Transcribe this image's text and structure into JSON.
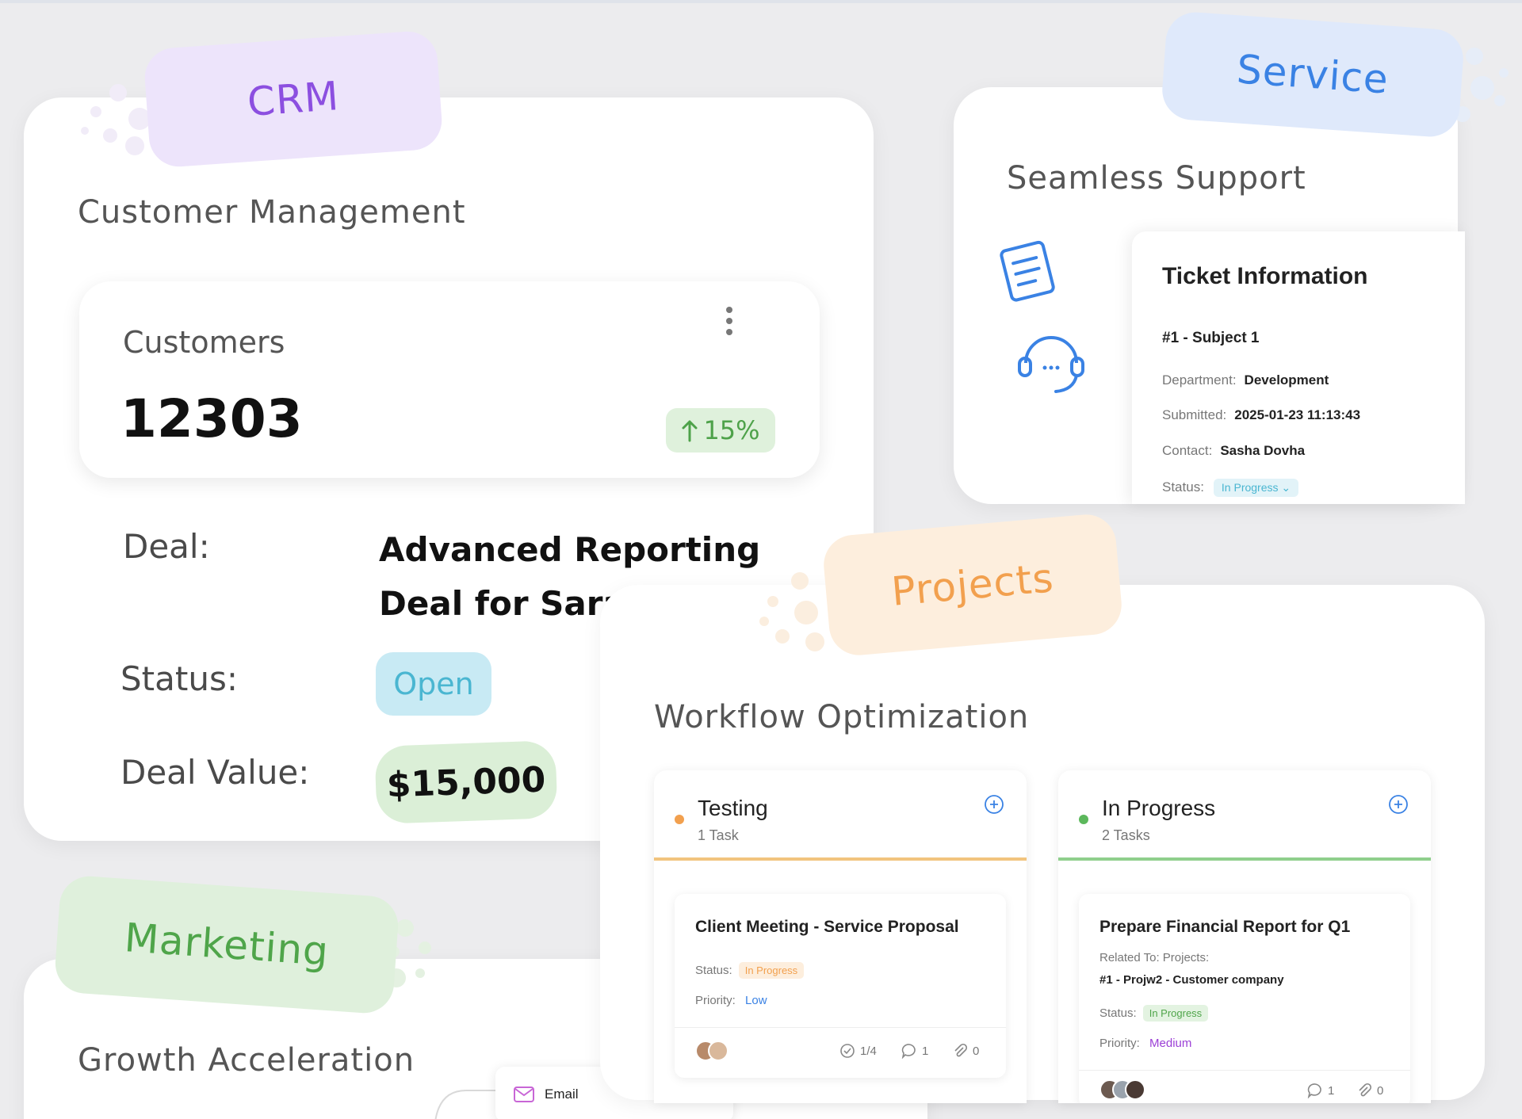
{
  "crm": {
    "tag": "CRM",
    "section_title": "Customer Management",
    "customers_label": "Customers",
    "customers_count": "12303",
    "growth": "15%",
    "deal_label": "Deal:",
    "deal_name": "Advanced Reporting Deal for Sarah",
    "status_label": "Status:",
    "status_value": "Open",
    "deal_value_label": "Deal Value:",
    "deal_value": "$15,000"
  },
  "service": {
    "tag": "Service",
    "section_title": "Seamless Support",
    "ticket_title": "Ticket Information",
    "ticket_subject": "#1 - Subject 1",
    "department_label": "Department:",
    "department_value": "Development",
    "submitted_label": "Submitted:",
    "submitted_value": "2025-01-23 11:13:43",
    "contact_label": "Contact:",
    "contact_value": "Sasha Dovha",
    "status_label": "Status:",
    "status_value": "In Progress"
  },
  "projects": {
    "tag": "Projects",
    "section_title": "Workflow Optimization",
    "columns": [
      {
        "name": "Testing",
        "count": "1 Task",
        "color": "#f2a04e",
        "task": {
          "title": "Client Meeting - Service Proposal",
          "status_label": "Status:",
          "status_value": "In Progress",
          "priority_label": "Priority:",
          "priority_value": "Low",
          "checklist": "1/4",
          "comments": "1",
          "attachments": "0"
        }
      },
      {
        "name": "In Progress",
        "count": "2 Tasks",
        "color": "#5cb85c",
        "task": {
          "title": "Prepare Financial Report for Q1",
          "related_label": "Related To: Projects:",
          "related_value": "#1 - Projw2 - Customer company",
          "status_label": "Status:",
          "status_value": "In Progress",
          "priority_label": "Priority:",
          "priority_value": "Medium",
          "comments": "1",
          "attachments": "0"
        }
      }
    ]
  },
  "marketing": {
    "tag": "Marketing",
    "section_title": "Growth Acceleration",
    "email_label": "Email"
  },
  "colors": {
    "crm_accent": "#8c4fe0",
    "service_accent": "#3a82e4",
    "projects_accent": "#f2a04e",
    "marketing_accent": "#4fa54a"
  }
}
